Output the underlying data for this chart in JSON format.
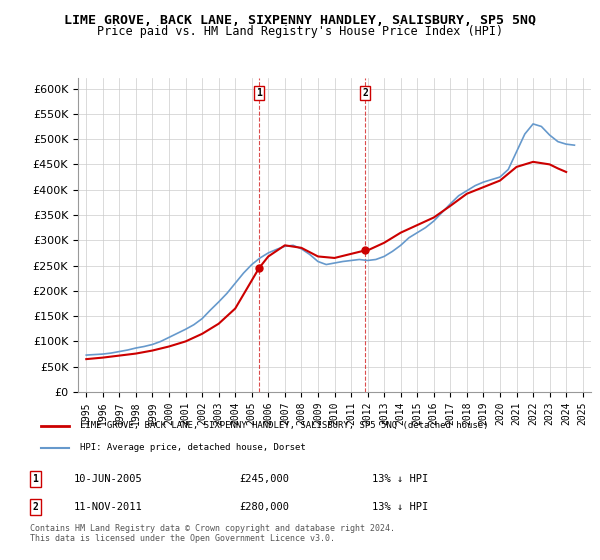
{
  "title": "LIME GROVE, BACK LANE, SIXPENNY HANDLEY, SALISBURY, SP5 5NQ",
  "subtitle": "Price paid vs. HM Land Registry's House Price Index (HPI)",
  "legend_line1": "LIME GROVE, BACK LANE, SIXPENNY HANDLEY, SALISBURY, SP5 5NQ (detached house)",
  "legend_line2": "HPI: Average price, detached house, Dorset",
  "sale1_label": "1",
  "sale1_date": "10-JUN-2005",
  "sale1_price": "£245,000",
  "sale1_hpi": "13% ↓ HPI",
  "sale2_label": "2",
  "sale2_date": "11-NOV-2011",
  "sale2_price": "£280,000",
  "sale2_hpi": "13% ↓ HPI",
  "footnote": "Contains HM Land Registry data © Crown copyright and database right 2024.\nThis data is licensed under the Open Government Licence v3.0.",
  "hpi_color": "#6699cc",
  "price_color": "#cc0000",
  "sale_marker_color": "#cc0000",
  "ylim": [
    0,
    620000
  ],
  "yticks": [
    0,
    50000,
    100000,
    150000,
    200000,
    250000,
    300000,
    350000,
    400000,
    450000,
    500000,
    550000,
    600000
  ],
  "background_color": "#ffffff",
  "grid_color": "#cccccc",
  "sale1_x": 2005.44,
  "sale2_x": 2011.86,
  "hpi_years": [
    1995,
    1995.5,
    1996,
    1996.5,
    1997,
    1997.5,
    1998,
    1998.5,
    1999,
    1999.5,
    2000,
    2000.5,
    2001,
    2001.5,
    2002,
    2002.5,
    2003,
    2003.5,
    2004,
    2004.5,
    2005,
    2005.5,
    2006,
    2006.5,
    2007,
    2007.5,
    2008,
    2008.5,
    2009,
    2009.5,
    2010,
    2010.5,
    2011,
    2011.5,
    2012,
    2012.5,
    2013,
    2013.5,
    2014,
    2014.5,
    2015,
    2015.5,
    2016,
    2016.5,
    2017,
    2017.5,
    2018,
    2018.5,
    2019,
    2019.5,
    2020,
    2020.5,
    2021,
    2021.5,
    2022,
    2022.5,
    2023,
    2023.5,
    2024,
    2024.5
  ],
  "hpi_values": [
    73000,
    74000,
    75000,
    77000,
    80000,
    83000,
    87000,
    90000,
    94000,
    100000,
    108000,
    116000,
    124000,
    133000,
    145000,
    162000,
    178000,
    195000,
    215000,
    235000,
    252000,
    265000,
    275000,
    282000,
    288000,
    290000,
    283000,
    272000,
    258000,
    252000,
    255000,
    258000,
    260000,
    262000,
    260000,
    262000,
    268000,
    278000,
    290000,
    305000,
    315000,
    325000,
    338000,
    355000,
    372000,
    388000,
    398000,
    408000,
    415000,
    420000,
    425000,
    440000,
    475000,
    510000,
    530000,
    525000,
    508000,
    495000,
    490000,
    488000
  ],
  "price_years": [
    1995,
    1996,
    1997,
    1998,
    1999,
    2000,
    2001,
    2002,
    2003,
    2004,
    2005.44,
    2006,
    2007,
    2008,
    2009,
    2010,
    2011.86,
    2012,
    2013,
    2014,
    2015,
    2016,
    2017,
    2018,
    2019,
    2020,
    2021,
    2022,
    2023,
    2023.5,
    2024
  ],
  "price_values": [
    65000,
    68000,
    72000,
    76000,
    82000,
    90000,
    100000,
    115000,
    135000,
    165000,
    245000,
    268000,
    290000,
    285000,
    268000,
    265000,
    280000,
    280000,
    295000,
    315000,
    330000,
    345000,
    368000,
    392000,
    405000,
    418000,
    445000,
    455000,
    450000,
    442000,
    435000
  ]
}
